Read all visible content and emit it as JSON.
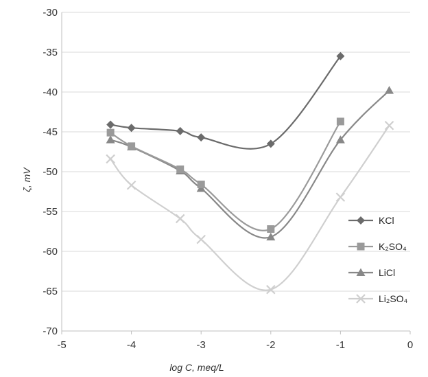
{
  "chart_data": {
    "type": "line",
    "title": "",
    "xlabel": "log C, meq/L",
    "ylabel": "ζ, mV",
    "xlim": [
      -5,
      0
    ],
    "ylim": [
      -70,
      -30
    ],
    "xticks": [
      -5,
      -4,
      -3,
      -2,
      -1,
      0
    ],
    "yticks": [
      -30,
      -35,
      -40,
      -45,
      -50,
      -55,
      -60,
      -65,
      -70
    ],
    "grid": "horizontal",
    "legend_position": "right",
    "series": [
      {
        "name": "KCl",
        "color": "#6b6b6b",
        "marker": "diamond",
        "x": [
          -4.3,
          -4.0,
          -3.3,
          -3.0,
          -2.0,
          -1.0
        ],
        "y": [
          -44.1,
          -44.5,
          -44.9,
          -45.7,
          -46.5,
          -35.5
        ]
      },
      {
        "name": "K₂SO₄",
        "color": "#9a9a9a",
        "marker": "square",
        "x": [
          -4.3,
          -4.0,
          -3.3,
          -3.0,
          -2.0,
          -1.0
        ],
        "y": [
          -45.1,
          -46.8,
          -49.7,
          -51.6,
          -57.2,
          -43.7
        ]
      },
      {
        "name": "LiCl",
        "color": "#888888",
        "marker": "triangle",
        "x": [
          -4.3,
          -4.0,
          -3.3,
          -3.0,
          -2.0,
          -1.0,
          -0.3
        ],
        "y": [
          -46.0,
          -46.9,
          -49.9,
          -52.1,
          -58.2,
          -46.0,
          -39.8
        ]
      },
      {
        "name": "Li₂SO₄",
        "color": "#cfcfcf",
        "marker": "x",
        "x": [
          -4.3,
          -4.0,
          -3.3,
          -3.0,
          -2.0,
          -1.0,
          -0.3
        ],
        "y": [
          -48.4,
          -51.7,
          -55.9,
          -58.5,
          -64.8,
          -53.2,
          -44.2
        ]
      }
    ]
  }
}
